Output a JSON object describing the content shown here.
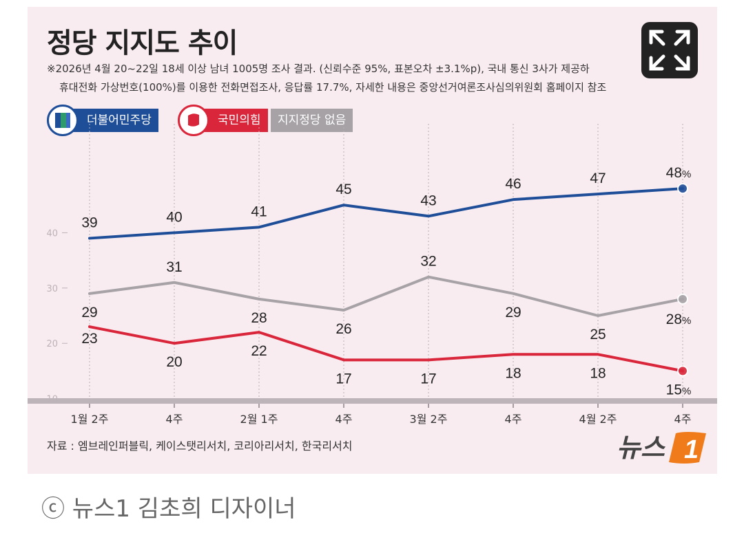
{
  "header": {
    "title": "정당 지지도 추이",
    "note_line1": "※2026년 4월 20~22일 18세 이상 남녀 1005명 조사 결과. (신뢰수준 95%, 표본오차 ±3.1%p), 국내 통신 3사가 제공하",
    "note_line2": "휴대전화 가상번호(100%)를 이용한 전화면접조사, 응답률 17.7%, 자세한 내용은 중앙선거여론조사심의위원회 홈페이지 참조"
  },
  "legend": {
    "dem": "더불어민주당",
    "ppp": "국민의힘",
    "none": "지지정당 없음"
  },
  "colors": {
    "dem": "#1f4e99",
    "ppp": "#d9263a",
    "none": "#a6a2a6",
    "background": "#f9ecf1"
  },
  "chart_data": {
    "type": "line",
    "categories": [
      "1월 2주",
      "4주",
      "2월 1주",
      "4주",
      "3월 2주",
      "4주",
      "4월 2주",
      "4주"
    ],
    "ylim": [
      5,
      60
    ],
    "y_ticks": [
      10,
      20,
      30,
      40
    ],
    "grid": "vertical dotted lines at each category",
    "series": [
      {
        "name": "더불어민주당",
        "key": "dem",
        "values": [
          39,
          40,
          41,
          45,
          43,
          46,
          47,
          48
        ]
      },
      {
        "name": "국민의힘",
        "key": "ppp",
        "values": [
          23,
          20,
          22,
          17,
          17,
          18,
          18,
          15
        ]
      },
      {
        "name": "지지정당 없음",
        "key": "none",
        "values": [
          29,
          31,
          28,
          26,
          32,
          29,
          25,
          28
        ]
      }
    ],
    "last_label_suffix": "%"
  },
  "footer": {
    "source": "자료 : 엠브레인퍼블릭, 케이스탯리서치, 코리아리서치, 한국리서치",
    "logo_text": "뉴스",
    "logo_number": "1"
  },
  "copyright": "ⓒ 뉴스1 김초희 디자이너",
  "icons": {
    "expand": "expand-icon"
  }
}
